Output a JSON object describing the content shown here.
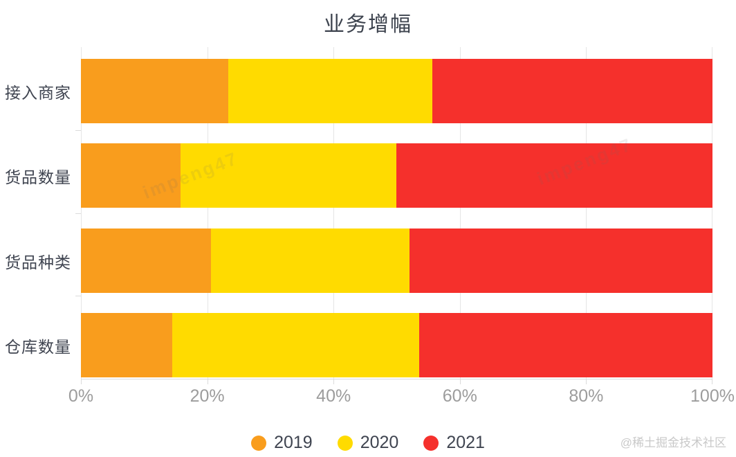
{
  "title": "业务增幅",
  "chart_data": {
    "type": "bar",
    "orientation": "horizontal",
    "stacked": true,
    "title": "业务增幅",
    "categories": [
      "接入商家",
      "货品数量",
      "货品种类",
      "仓库数量"
    ],
    "series": [
      {
        "name": "2019",
        "color": "#F99D1D",
        "values": [
          23.3,
          15.8,
          20.6,
          14.5
        ]
      },
      {
        "name": "2020",
        "color": "#FFDB00",
        "values": [
          32.3,
          34.2,
          31.4,
          39.1
        ]
      },
      {
        "name": "2021",
        "color": "#F5302C",
        "values": [
          44.4,
          50.0,
          48.0,
          46.4
        ]
      }
    ],
    "values_unit": "% of row total",
    "x_ticks": [
      "0%",
      "20%",
      "40%",
      "60%",
      "80%",
      "100%"
    ],
    "xlim": [
      0,
      100
    ],
    "grid": true,
    "legend_position": "bottom"
  },
  "watermarks": {
    "corner": "@稀土掘金技术社区",
    "diagonal": "impeng47"
  }
}
